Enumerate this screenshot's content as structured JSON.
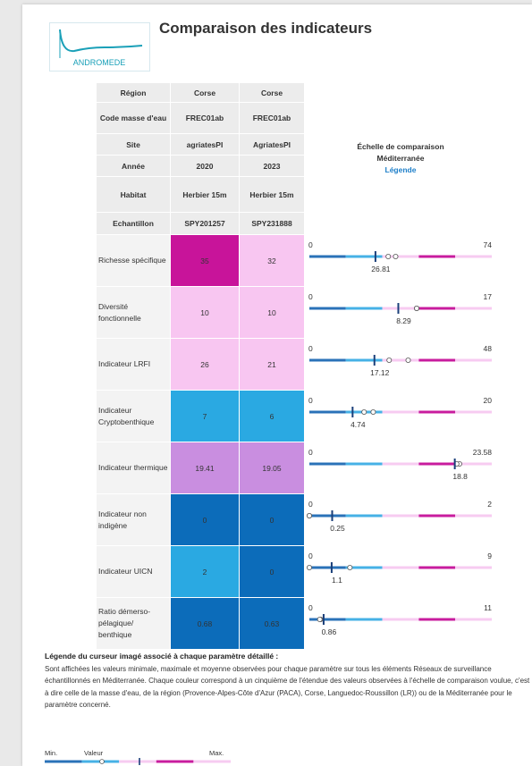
{
  "header": {
    "title": "Comparaison des indicateurs",
    "logo": "ANDROMEDE"
  },
  "table": {
    "header_rows": [
      {
        "label": "Région",
        "values": [
          "Corse",
          "Corse"
        ]
      },
      {
        "label": "Code masse d'eau",
        "values": [
          "FREC01ab",
          "FREC01ab"
        ]
      },
      {
        "label": "Site",
        "values": [
          "agriatesPI",
          "AgriatesPI"
        ]
      },
      {
        "label": "Année",
        "values": [
          "2020",
          "2023"
        ]
      },
      {
        "label": "Habitat",
        "values": [
          "Herbier 15m",
          "Herbier 15m"
        ]
      },
      {
        "label": "Echantillon",
        "values": [
          "SPY201257",
          "SPY231888"
        ]
      }
    ],
    "scale_header": {
      "title": "Échelle de comparaison",
      "subtitle": "Méditerranée",
      "link": "Légende"
    },
    "scale_colors": [
      "#2a72b8",
      "#46b1e6",
      "#f7cbf1",
      "#c81c9e",
      "#f7cbf1"
    ],
    "rows": [
      {
        "label": "Richesse spécifique",
        "values": [
          35,
          32
        ],
        "colors": [
          "#c8149a",
          "#f8c6f1"
        ],
        "min": 0,
        "max": 74,
        "mean": 26.81
      },
      {
        "label": "Diversité fonctionnelle",
        "values": [
          10,
          10
        ],
        "colors": [
          "#f8c6f1",
          "#f8c6f1"
        ],
        "min": 0,
        "max": 17,
        "mean": 8.29
      },
      {
        "label": "Indicateur LRFI",
        "values": [
          26,
          21
        ],
        "colors": [
          "#f8c6f1",
          "#f8c6f1"
        ],
        "min": 0,
        "max": 48,
        "mean": 17.12
      },
      {
        "label": "Indicateur Cryptobenthique",
        "values": [
          7,
          6
        ],
        "colors": [
          "#2aa9e2",
          "#2aa9e2"
        ],
        "min": 0,
        "max": 20,
        "mean": 4.74
      },
      {
        "label": "Indicateur thermique",
        "values": [
          19.41,
          19.05
        ],
        "colors": [
          "#c98ee0",
          "#c98ee0"
        ],
        "min": 0,
        "max": 23.58,
        "mean": 18.8
      },
      {
        "label": "Indicateur non indigène",
        "values": [
          0,
          0
        ],
        "colors": [
          "#0c6cba",
          "#0c6cba"
        ],
        "min": 0,
        "max": 2,
        "mean": 0.25
      },
      {
        "label": "Indicateur UICN",
        "values": [
          2,
          0
        ],
        "colors": [
          "#2aa9e2",
          "#0c6cba"
        ],
        "min": 0,
        "max": 9,
        "mean": 1.1
      },
      {
        "label": "Ratio démerso-pélagique/ benthique",
        "values": [
          0.68,
          0.63
        ],
        "colors": [
          "#0c6cba",
          "#0c6cba"
        ],
        "min": 0,
        "max": 11,
        "mean": 0.86
      }
    ]
  },
  "legend": {
    "title": "Légende du curseur imagé associé à chaque paramètre détaillé :",
    "text": "Sont affichées les valeurs minimale, maximale et moyenne observées pour chaque paramètre sur tous les éléments Réseaux de surveillance échantillonnés en Méditerranée. Chaque couleur correspond à un cinquième de l'étendue des valeurs observées à l'échelle de comparaison voulue, c'est à dire celle de la masse d'eau, de la région (Provence-Alpes-Côte d'Azur (PACA), Corse, Languedoc-Roussillon (LR)) ou de la Méditerranée pour le paramètre concerné.",
    "labels": [
      "Min.",
      "Valeur",
      "Max."
    ]
  }
}
